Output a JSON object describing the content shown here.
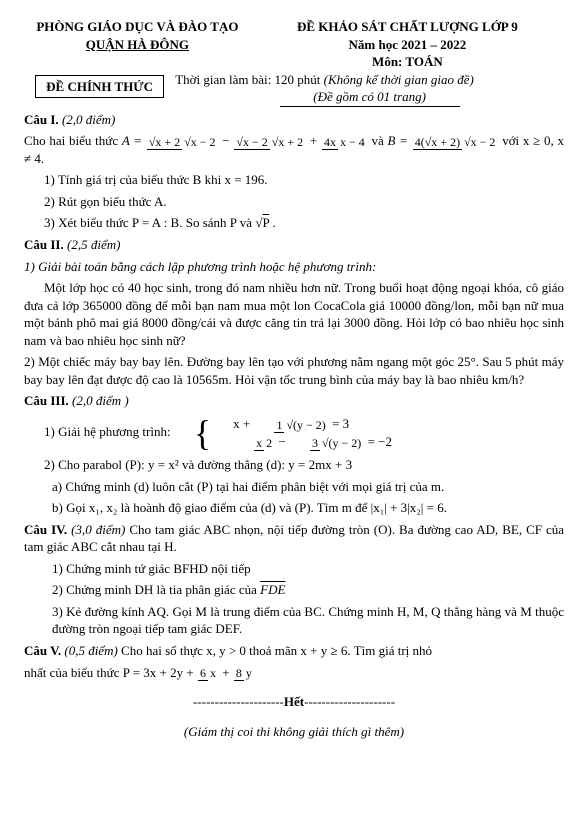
{
  "header": {
    "left_line1": "PHÒNG GIÁO DỤC VÀ ĐÀO TẠO",
    "left_line2": "QUẬN HÀ ĐÔNG",
    "left_box": "ĐỀ CHÍNH THỨC",
    "right_line1": "ĐỀ KHẢO SÁT CHẤT LƯỢNG LỚP 9",
    "right_line2": "Năm học 2021 – 2022",
    "right_line3": "Môn: TOÁN",
    "time_main": "Thời gian làm bài: 120 phút",
    "time_note": "(Không kể thời gian giao đề)",
    "page_note": "(Đề gồm có 01 trang)"
  },
  "c1": {
    "title": "Câu I.",
    "score": "(2,0 điểm)",
    "intro": "Cho hai biểu thức",
    "A_lead": "A =",
    "A_t1_num": "√x + 2",
    "A_t1_den": "√x − 2",
    "A_t2_num": "√x − 2",
    "A_t2_den": "√x + 2",
    "A_t3_num": "4x",
    "A_t3_den": "x − 4",
    "and": "và",
    "B_lead": "B =",
    "B_num": "4(√x + 2)",
    "B_den": "√x − 2",
    "cond": "với x ≥ 0, x ≠ 4.",
    "q1": "1) Tính giá trị của biểu thức B khi x = 196.",
    "q2": "2) Rút gọn biểu thức A.",
    "q3a": "3) Xét biểu thức P = A : B. So sánh  P và",
    "q3b_in": "P",
    "q3c": "."
  },
  "c2": {
    "title": "Câu II.",
    "score": "(2,5 điểm)",
    "lead": "1) Giải bài toán bằng cách lập phương trình hoặc hệ phương trình:",
    "p1": "Một lớp học có 40 học sinh, trong đó nam nhiều hơn nữ. Trong buổi hoạt động ngoại khóa, cô giáo đưa cả lớp 365000 đồng để mỗi bạn nam mua một lon CocaCola giá 10000 đồng/lon, mỗi bạn nữ mua một bánh phô mai giá 8000 đồng/cái và được căng tin trả lại 3000 đồng. Hỏi lớp có bao nhiêu học sinh nam và bao nhiêu học sinh nữ?",
    "p2": "2) Một chiếc máy bay bay lên. Đường bay lên tạo với phương nằm ngang một góc 25°. Sau 5 phút máy bay bay lên đạt được độ cao là 10565m. Hỏi vận tốc trung bình của máy bay là bao nhiêu km/h?"
  },
  "c3": {
    "title": "Câu III.",
    "score": "(2,0 điểm )",
    "q1_lead": "1) Giải hệ phương trình:",
    "eq1_a": "x +",
    "eq1_num": "1",
    "eq1_den": "√(y − 2)",
    "eq1_r": "= 3",
    "eq2_num_a": "x",
    "eq2_den_a": "2",
    "eq2_mid": "−",
    "eq2_num_b": "3",
    "eq2_den_b": "√(y − 2)",
    "eq2_r": "= −2",
    "q2": "2) Cho parabol (P):  y = x²  và đường thẳng (d):  y = 2mx + 3",
    "q2a": "a) Chứng minh (d) luôn cắt (P) tại hai điểm phân biệt với mọi giá trị của m.",
    "q2b": "b) Gọi  x₁, x₂ là hoành độ giao điểm của (d) và (P). Tìm m để |x₁| + 3|x₂| = 6."
  },
  "c4": {
    "title": "Câu IV.",
    "score": "(3,0 điểm)",
    "lead": "Cho tam giác ABC nhọn, nội tiếp đường tròn (O). Ba đường cao AD, BE, CF của tam giác ABC cắt nhau tại H.",
    "q1": "1) Chứng minh tứ giác BFHD nội tiếp",
    "q2a": "2) Chứng minh DH là tia phân giác của ",
    "q2b": "FDE",
    "q3": "3) Kẻ đường kính AQ. Gọi M là trung điểm của BC. Chứng minh H, M, Q thẳng hàng và M thuộc đường tròn ngoại tiếp tam giác DEF."
  },
  "c5": {
    "title": "Câu V.",
    "score": "(0,5 điểm)",
    "lead_a": "Cho hai số thực  x, y > 0 thoả mãn  x + y  ≥ 6.  Tìm giá trị nhỏ",
    "lead_b": "nhất của biểu thức  P = 3x + 2y +",
    "f1_num": "6",
    "f1_den": "x",
    "plus": "+",
    "f2_num": "8",
    "f2_den": "y"
  },
  "footer": {
    "end": "Hết",
    "note": "(Giám thị coi thi không giải thích gì thêm)"
  }
}
